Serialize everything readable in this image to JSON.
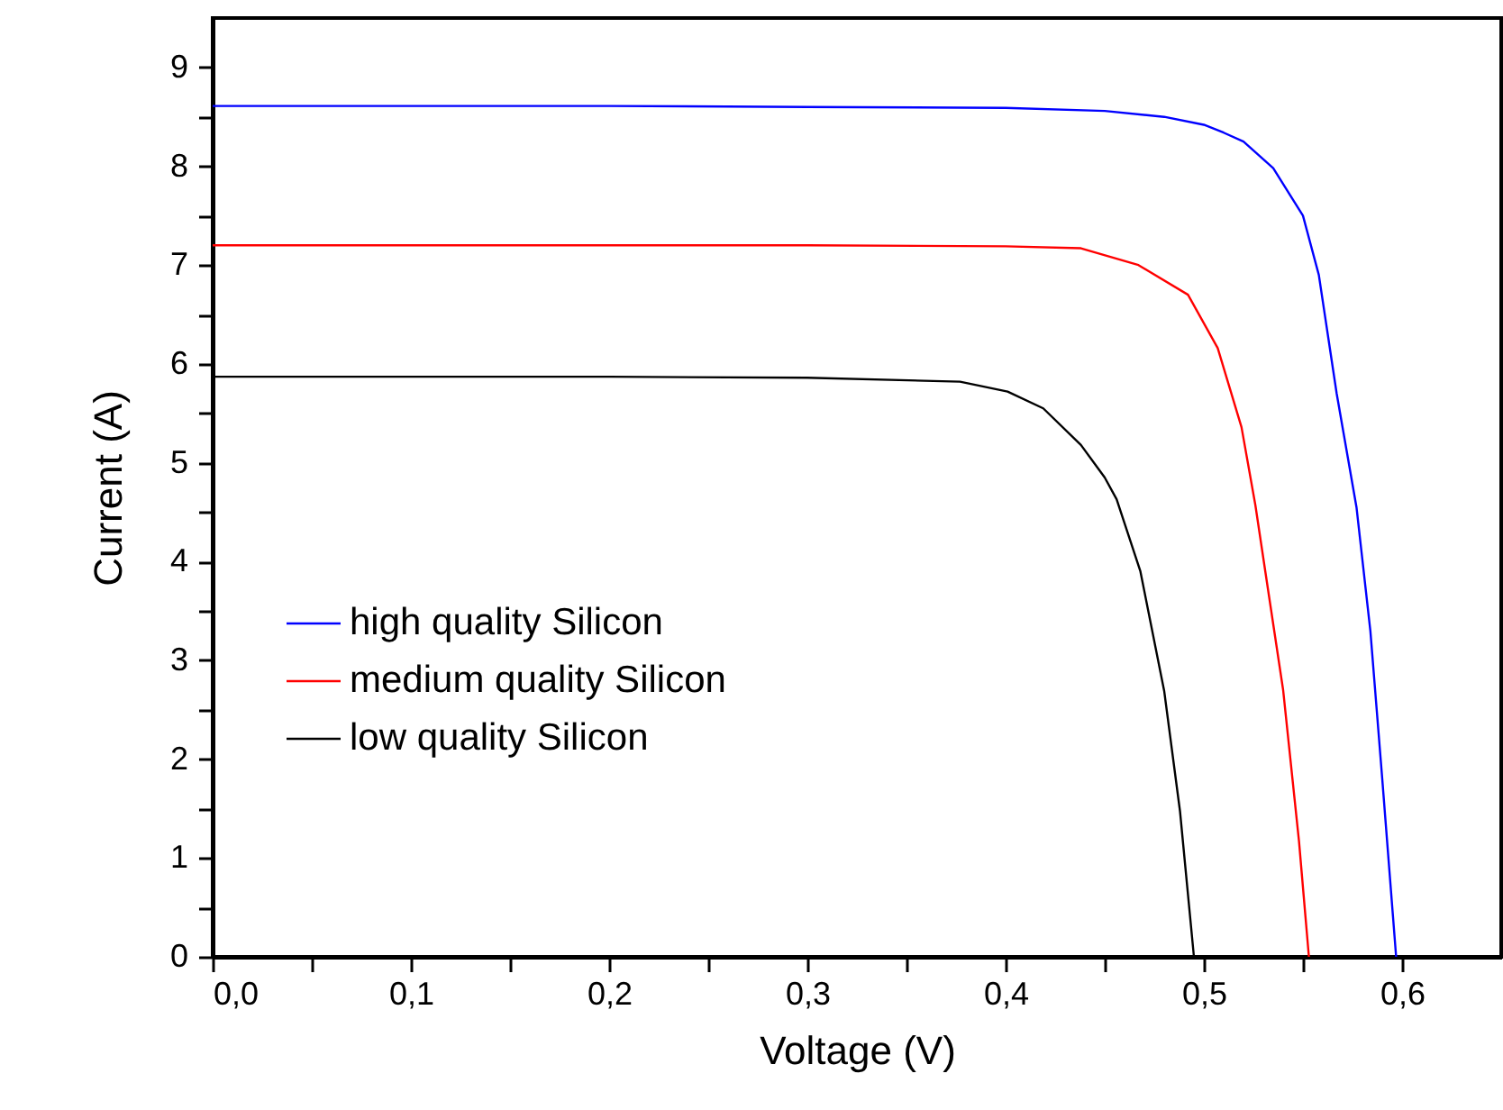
{
  "chart_data": {
    "type": "line",
    "xlabel": "Voltage (V)",
    "ylabel": "Current (A)",
    "xlim": [
      0,
      0.65
    ],
    "ylim": [
      0,
      9.5
    ],
    "xticks": [
      {
        "value": 0,
        "label": "0,0"
      },
      {
        "value": 0.05,
        "label": null
      },
      {
        "value": 0.1,
        "label": "0,1"
      },
      {
        "value": 0.15,
        "label": null
      },
      {
        "value": 0.2,
        "label": "0,2"
      },
      {
        "value": 0.25,
        "label": null
      },
      {
        "value": 0.3,
        "label": "0,3"
      },
      {
        "value": 0.35,
        "label": null
      },
      {
        "value": 0.4,
        "label": "0,4"
      },
      {
        "value": 0.45,
        "label": null
      },
      {
        "value": 0.5,
        "label": "0,5"
      },
      {
        "value": 0.55,
        "label": null
      },
      {
        "value": 0.6,
        "label": "0,6"
      }
    ],
    "yticks": [
      0,
      {
        "value": 0.5,
        "label": null
      },
      1,
      {
        "value": 1.5,
        "label": null
      },
      2,
      {
        "value": 2.5,
        "label": null
      },
      3,
      {
        "value": 3.5,
        "label": null
      },
      4,
      {
        "value": 4.5,
        "label": null
      },
      5,
      {
        "value": 5.5,
        "label": null
      },
      6,
      {
        "value": 6.5,
        "label": null
      },
      7,
      {
        "value": 7.5,
        "label": null
      },
      8,
      {
        "value": 8.5,
        "label": null
      },
      9
    ],
    "grid": false,
    "legend": "left",
    "line_style": "solid",
    "series": [
      {
        "name": "high quality Silicon",
        "color": "#0000ff",
        "x": [
          0,
          0.1,
          0.2,
          0.3,
          0.4,
          0.45,
          0.48,
          0.5,
          0.51,
          0.52,
          0.535,
          0.55,
          0.558,
          0.567,
          0.577,
          0.584,
          0.59,
          0.597
        ],
        "values": [
          8.61,
          8.61,
          8.61,
          8.6,
          8.59,
          8.56,
          8.5,
          8.42,
          8.34,
          8.25,
          7.98,
          7.5,
          6.9,
          5.7,
          4.55,
          3.3,
          1.8,
          0
        ]
      },
      {
        "name": "medium quality Silicon",
        "color": "#ff0000",
        "x": [
          0,
          0.1,
          0.2,
          0.3,
          0.4,
          0.438,
          0.467,
          0.492,
          0.507,
          0.519,
          0.526,
          0.531,
          0.54,
          0.548,
          0.553
        ],
        "values": [
          7.2,
          7.2,
          7.2,
          7.2,
          7.19,
          7.17,
          7.0,
          6.7,
          6.16,
          5.36,
          4.57,
          3.9,
          2.7,
          1.17,
          0
        ]
      },
      {
        "name": "low quality Silicon",
        "color": "#000000",
        "x": [
          0,
          0.1,
          0.2,
          0.3,
          0.377,
          0.401,
          0.419,
          0.438,
          0.45,
          0.456,
          0.468,
          0.48,
          0.488,
          0.495
        ],
        "values": [
          5.87,
          5.87,
          5.87,
          5.86,
          5.82,
          5.72,
          5.55,
          5.18,
          4.85,
          4.63,
          3.9,
          2.69,
          1.47,
          0
        ]
      }
    ]
  }
}
